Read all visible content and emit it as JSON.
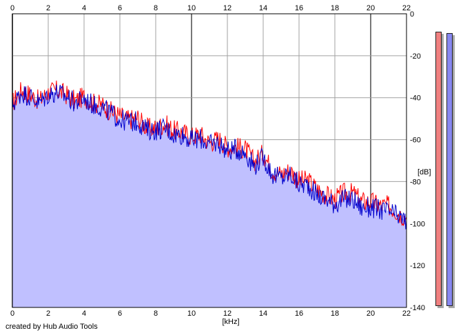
{
  "credit": "created by Hub Audio Tools",
  "chart_data": {
    "type": "area",
    "title": "",
    "xlabel": "[kHz]",
    "ylabel": "[dB]",
    "xlim": [
      0,
      22
    ],
    "ylim": [
      -140,
      0
    ],
    "x_ticks": [
      "0",
      "2",
      "4",
      "6",
      "8",
      "10",
      "12",
      "14",
      "16",
      "18",
      "20",
      "22"
    ],
    "y_ticks": [
      "0",
      "-20",
      "-40",
      "-60",
      "-80",
      "-100",
      "-120",
      "-140"
    ],
    "grid": true,
    "x_unit": "kHz",
    "y_unit": "dB",
    "series": [
      {
        "color": "#ff0000",
        "fill": null,
        "x": [
          0,
          0.5,
          1,
          1.5,
          2,
          2.5,
          3,
          3.5,
          4,
          4.5,
          5,
          5.5,
          6,
          6.5,
          7,
          7.5,
          8,
          8.5,
          9,
          9.5,
          10,
          10.5,
          11,
          11.5,
          12,
          12.5,
          13,
          13.5,
          14,
          14.5,
          15,
          15.5,
          16,
          16.5,
          17,
          17.5,
          18,
          18.5,
          19,
          19.5,
          20,
          20.5,
          21,
          21.5,
          22
        ],
        "values": [
          -42,
          -36,
          -38,
          -41,
          -37,
          -36,
          -38,
          -41,
          -39,
          -42,
          -43,
          -46,
          -48,
          -50,
          -49,
          -54,
          -54,
          -52,
          -55,
          -56,
          -58,
          -57,
          -61,
          -59,
          -63,
          -63,
          -64,
          -70,
          -66,
          -74,
          -76,
          -74,
          -79,
          -79,
          -83,
          -86,
          -88,
          -85,
          -85,
          -89,
          -89,
          -91,
          -91,
          -94,
          -97
        ]
      },
      {
        "color": "#0000cc",
        "fill": "#c0c0ff",
        "x": [
          0,
          0.5,
          1,
          1.5,
          2,
          2.5,
          3,
          3.5,
          4,
          4.5,
          5,
          5.5,
          6,
          6.5,
          7,
          7.5,
          8,
          8.5,
          9,
          9.5,
          10,
          10.5,
          11,
          11.5,
          12,
          12.5,
          13,
          13.5,
          14,
          14.5,
          15,
          15.5,
          16,
          16.5,
          17,
          17.5,
          18,
          18.5,
          19,
          19.5,
          20,
          20.5,
          21,
          21.5,
          22
        ],
        "values": [
          -43,
          -37,
          -39,
          -42,
          -38,
          -37,
          -39,
          -42,
          -40,
          -43,
          -44,
          -47,
          -50,
          -51,
          -51,
          -55,
          -55,
          -54,
          -57,
          -57,
          -60,
          -59,
          -62,
          -61,
          -65,
          -64,
          -66,
          -72,
          -68,
          -76,
          -78,
          -76,
          -81,
          -81,
          -86,
          -88,
          -90,
          -88,
          -88,
          -92,
          -92,
          -93,
          -94,
          -96,
          -99
        ]
      }
    ],
    "level_meters": [
      {
        "color": "#f08080",
        "value_db": 0
      },
      {
        "color": "#8888f0",
        "value_db": 0
      }
    ]
  }
}
